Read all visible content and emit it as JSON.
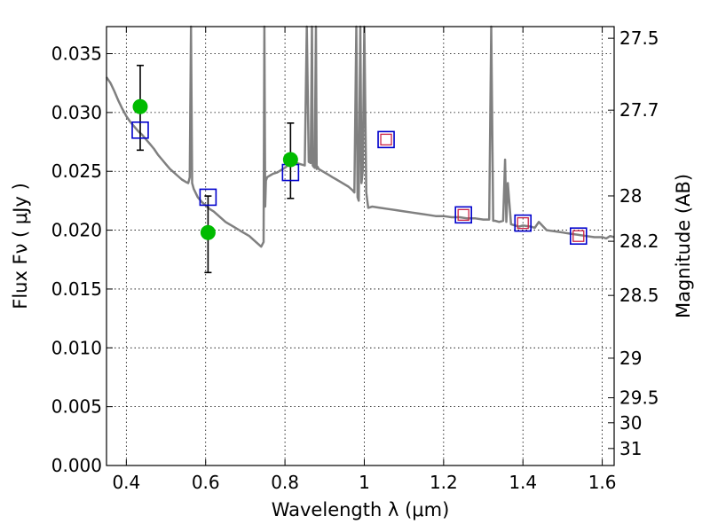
{
  "chart_data": {
    "type": "line",
    "xlabel": "Wavelength  λ (μm)",
    "ylabel": "Flux  Fν  ( μJy )",
    "y2label": "Magnitude (AB)",
    "xlim": [
      0.35,
      1.63
    ],
    "ylim": [
      0.0,
      0.0373
    ],
    "grid": true,
    "x_ticks": [
      0.4,
      0.6,
      0.8,
      1.0,
      1.2,
      1.4,
      1.6
    ],
    "x_tick_labels": [
      "0.4",
      "0.6",
      "0.8",
      "1",
      "1.2",
      "1.4",
      "1.6"
    ],
    "y_ticks": [
      0.0,
      0.005,
      0.01,
      0.015,
      0.02,
      0.025,
      0.03,
      0.035
    ],
    "y_tick_labels": [
      "0.000",
      "0.005",
      "0.010",
      "0.015",
      "0.020",
      "0.025",
      "0.030",
      "0.035"
    ],
    "mag_ticks": [
      27.5,
      27.7,
      28,
      28.2,
      28.5,
      29,
      29.5,
      30,
      31
    ],
    "mag_tick_labels": [
      "27.5",
      "27.7",
      "28",
      "28.2",
      "28.5",
      "29",
      "29.5",
      "30",
      "31"
    ],
    "colors": {
      "model": "#808080",
      "observed": "#00bb00",
      "errorbar": "#000000",
      "model_phot": "#0000cc",
      "predicted": "#cc2244"
    },
    "series": [
      {
        "kind": "model_spectrum",
        "x": [
          0.35,
          0.36,
          0.37,
          0.38,
          0.39,
          0.4,
          0.41,
          0.42,
          0.43,
          0.44,
          0.45,
          0.46,
          0.47,
          0.48,
          0.49,
          0.5,
          0.51,
          0.52,
          0.53,
          0.54,
          0.55,
          0.556,
          0.56,
          0.563,
          0.566,
          0.57,
          0.58,
          0.59,
          0.6,
          0.61,
          0.62,
          0.63,
          0.64,
          0.65,
          0.66,
          0.67,
          0.68,
          0.69,
          0.7,
          0.71,
          0.72,
          0.73,
          0.74,
          0.746,
          0.748,
          0.75,
          0.752,
          0.755,
          0.76,
          0.77,
          0.78,
          0.79,
          0.8,
          0.81,
          0.82,
          0.83,
          0.84,
          0.85,
          0.855,
          0.86,
          0.865,
          0.868,
          0.87,
          0.872,
          0.875,
          0.878,
          0.88,
          0.882,
          0.885,
          0.89,
          0.9,
          0.91,
          0.92,
          0.93,
          0.94,
          0.95,
          0.96,
          0.97,
          0.975,
          0.98,
          0.983,
          0.986,
          0.99,
          0.993,
          0.996,
          1.0,
          1.005,
          1.01,
          1.02,
          1.04,
          1.06,
          1.08,
          1.1,
          1.12,
          1.14,
          1.16,
          1.18,
          1.2,
          1.22,
          1.24,
          1.26,
          1.28,
          1.3,
          1.315,
          1.32,
          1.325,
          1.33,
          1.34,
          1.35,
          1.355,
          1.358,
          1.362,
          1.37,
          1.38,
          1.39,
          1.4,
          1.42,
          1.43,
          1.44,
          1.46,
          1.48,
          1.5,
          1.52,
          1.54,
          1.56,
          1.58,
          1.6,
          1.61,
          1.62,
          1.63
        ],
        "y": [
          0.033,
          0.0325,
          0.0318,
          0.031,
          0.0303,
          0.0297,
          0.0292,
          0.0288,
          0.0284,
          0.0281,
          0.0277,
          0.0273,
          0.0269,
          0.0264,
          0.026,
          0.0256,
          0.0252,
          0.0249,
          0.0246,
          0.0243,
          0.0241,
          0.024,
          0.0245,
          0.0373,
          0.024,
          0.0235,
          0.0228,
          0.0224,
          0.0221,
          0.0218,
          0.0216,
          0.0213,
          0.021,
          0.0207,
          0.0205,
          0.0203,
          0.0201,
          0.0199,
          0.0197,
          0.0195,
          0.0192,
          0.0189,
          0.0186,
          0.019,
          0.0373,
          0.022,
          0.0242,
          0.0245,
          0.0246,
          0.0248,
          0.0249,
          0.0251,
          0.0253,
          0.0256,
          0.0258,
          0.0257,
          0.0256,
          0.0255,
          0.0373,
          0.0258,
          0.0257,
          0.0373,
          0.0255,
          0.0254,
          0.0253,
          0.0373,
          0.0252,
          0.0254,
          0.0252,
          0.0251,
          0.0249,
          0.0247,
          0.0245,
          0.0243,
          0.0241,
          0.0239,
          0.0237,
          0.0234,
          0.0232,
          0.0373,
          0.0228,
          0.0225,
          0.0373,
          0.024,
          0.025,
          0.0373,
          0.0232,
          0.0219,
          0.022,
          0.0219,
          0.0218,
          0.0217,
          0.0216,
          0.0215,
          0.0214,
          0.0213,
          0.0212,
          0.0212,
          0.0211,
          0.0211,
          0.021,
          0.021,
          0.0209,
          0.0209,
          0.0373,
          0.0208,
          0.0208,
          0.0207,
          0.0208,
          0.026,
          0.0207,
          0.024,
          0.0205,
          0.0204,
          0.0203,
          0.0204,
          0.0203,
          0.0202,
          0.0207,
          0.02,
          0.0199,
          0.0198,
          0.0197,
          0.0196,
          0.0195,
          0.0194,
          0.0194,
          0.0193,
          0.0195,
          0.0194
        ]
      },
      {
        "kind": "observed",
        "name": "",
        "x": [
          0.435,
          0.606,
          0.814
        ],
        "y": [
          0.0305,
          0.0198,
          0.026
        ],
        "yerr_low": [
          0.0037,
          0.0034,
          0.0033
        ],
        "yerr_high": [
          0.0035,
          0.0031,
          0.0031
        ]
      },
      {
        "kind": "model_photometry",
        "x": [
          0.435,
          0.606,
          0.814,
          1.055,
          1.25,
          1.4,
          1.54
        ],
        "y": [
          0.0285,
          0.0228,
          0.0249,
          0.0277,
          0.0213,
          0.0206,
          0.0195
        ]
      },
      {
        "kind": "predicted",
        "x": [
          1.055,
          1.25,
          1.4,
          1.54
        ],
        "y": [
          0.0277,
          0.0213,
          0.0206,
          0.0195
        ]
      }
    ]
  }
}
